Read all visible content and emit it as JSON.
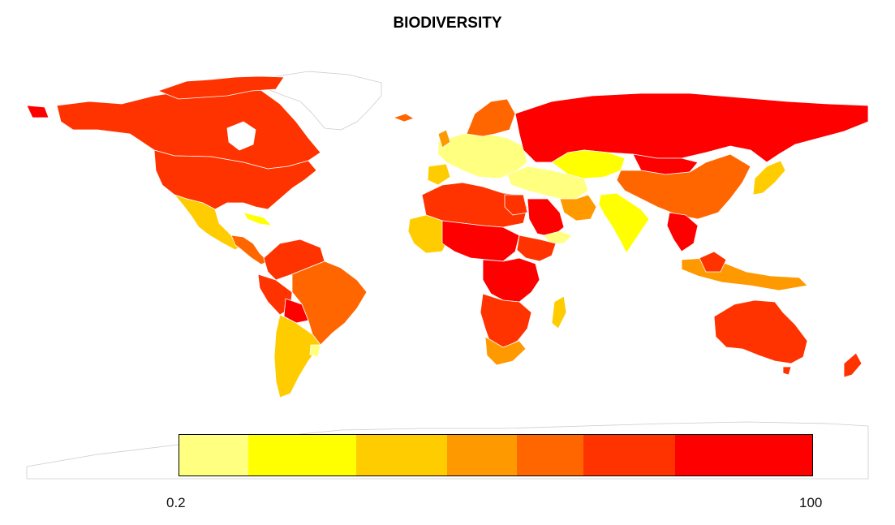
{
  "title": "BIODIVERSITY",
  "legend": {
    "min_label": "0.2",
    "max_label": "100",
    "bins": [
      {
        "color": "#FFFF80"
      },
      {
        "color": "#FFFF00"
      },
      {
        "color": "#FFCC00"
      },
      {
        "color": "#FF9900"
      },
      {
        "color": "#FF6600"
      },
      {
        "color": "#FF3300"
      },
      {
        "color": "#FF0000"
      }
    ]
  },
  "colors": {
    "no_data": "#FFFFFF",
    "border": "#D0D0D0"
  }
}
